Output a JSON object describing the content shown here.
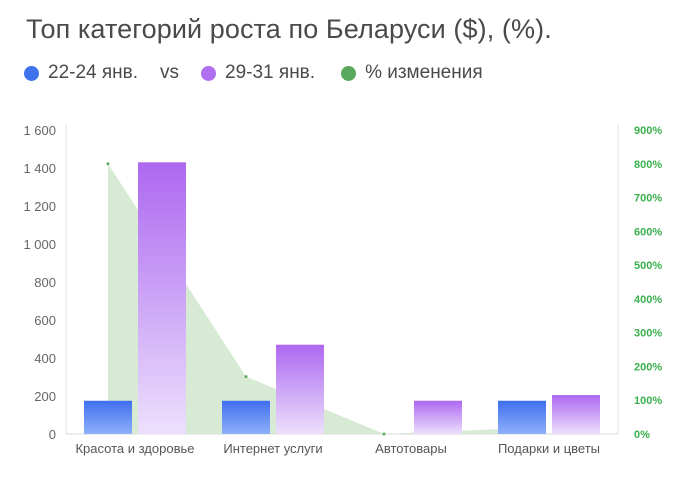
{
  "chart_data": {
    "type": "bar",
    "title": "Топ категорий роста по Беларуси ($), (%).",
    "legend": {
      "series_a": "22-24 янв.",
      "vs": "vs",
      "series_b": "29-31 янв.",
      "series_c": "% изменения"
    },
    "categories": [
      "Красота и здоровье",
      "Интернет услуги",
      "Автотовары",
      "Подарки и цветы"
    ],
    "series": [
      {
        "name": "22-24 янв.",
        "values": [
          175,
          175,
          0,
          175
        ]
      },
      {
        "name": "29-31 янв.",
        "values": [
          1430,
          470,
          175,
          205
        ]
      },
      {
        "name": "% изменения",
        "values": [
          800,
          170,
          0,
          17
        ],
        "axis": "right",
        "style": "area"
      }
    ],
    "y_left": {
      "min": 0,
      "max": 1600,
      "tick_labels": [
        "0",
        "200",
        "400",
        "600",
        "800",
        "1 000",
        "1 200",
        "1 400",
        "1 600"
      ]
    },
    "y_right": {
      "min": 0,
      "max": 900,
      "tick_labels": [
        "0%",
        "100%",
        "200%",
        "300%",
        "400%",
        "500%",
        "600%",
        "700%",
        "800%",
        "900%"
      ]
    },
    "colors": {
      "series_a": "#3f73ee",
      "series_b": "#b06ef0",
      "series_c": "#5aa85e",
      "area_fill": "#cfe6cd"
    },
    "grid": false,
    "legend_position": "top-left"
  }
}
